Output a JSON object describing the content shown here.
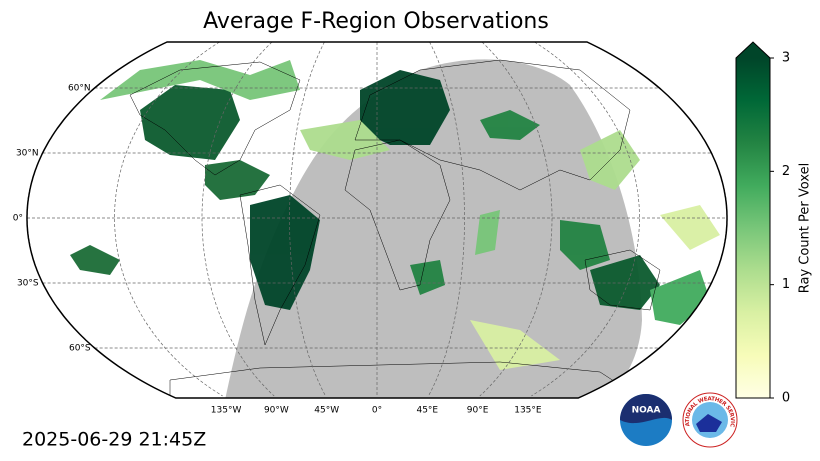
{
  "title": "Average F-Region Observations",
  "grid": {
    "lat_labels": [
      {
        "value": 60,
        "label": "60°N"
      },
      {
        "value": 30,
        "label": "30°N"
      },
      {
        "value": 0,
        "label": "0°"
      },
      {
        "value": -30,
        "label": "30°S"
      },
      {
        "value": -60,
        "label": "60°S"
      }
    ],
    "lon_labels": [
      {
        "value": -135,
        "label": "135°W"
      },
      {
        "value": -90,
        "label": "90°W"
      },
      {
        "value": -45,
        "label": "45°W"
      },
      {
        "value": 0,
        "label": "0°"
      },
      {
        "value": 45,
        "label": "45°E"
      },
      {
        "value": 90,
        "label": "90°E"
      },
      {
        "value": 135,
        "label": "135°E"
      }
    ]
  },
  "colorbar": {
    "label": "Ray Count Per Voxel",
    "lim": [
      0,
      3
    ],
    "ticks": [
      0,
      1,
      2,
      3
    ],
    "colors": [
      "#ffffe5",
      "#f7fcb9",
      "#d9f0a3",
      "#addd8e",
      "#78c679",
      "#41ab5d",
      "#238443",
      "#006837",
      "#004529"
    ]
  },
  "timestamp": "2025-06-29 21:45Z",
  "logos": {
    "noaa": "NOAA",
    "nws": "NATIONAL WEATHER SERVICE"
  }
}
